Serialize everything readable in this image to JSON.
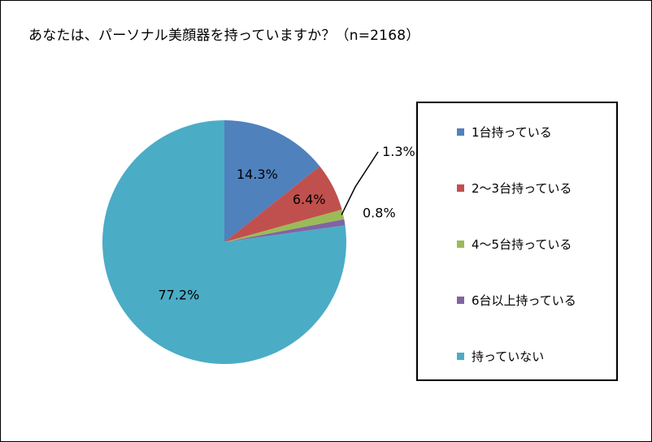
{
  "chart_data": {
    "type": "pie",
    "title": "あなたは、パーソナル美顔器を持っていますか？（n=2168）",
    "categories": [
      "1台持っている",
      "2～3台持っている",
      "4～5台持っている",
      "6台以上持っている",
      "持っていない"
    ],
    "values": [
      14.3,
      6.4,
      1.3,
      0.8,
      77.2
    ],
    "data_labels": [
      "14.3%",
      "6.4%",
      "1.3%",
      "0.8%",
      "77.2%"
    ],
    "colors": [
      "#4F81BD",
      "#C0504D",
      "#9BBB59",
      "#8064A2",
      "#4BACC6"
    ],
    "start": "12 o'clock",
    "direction": "clockwise",
    "legend_position": "right"
  }
}
